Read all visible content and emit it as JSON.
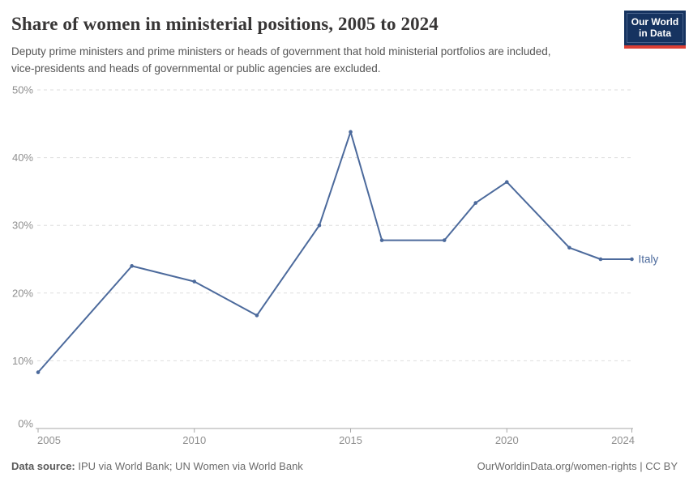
{
  "header": {
    "title": "Share of women in ministerial positions, 2005 to 2024",
    "subtitle": "Deputy prime ministers and prime ministers or heads of government that hold ministerial portfolios are included, vice-presidents and heads of governmental or public agencies are excluded."
  },
  "logo": {
    "line1": "Our World",
    "line2": "in Data"
  },
  "chart_data": {
    "type": "line",
    "title": "Share of women in ministerial positions, 2005 to 2024",
    "x": [
      2005,
      2008,
      2010,
      2012,
      2014,
      2015,
      2016,
      2018,
      2019,
      2020,
      2022,
      2023,
      2024
    ],
    "series": [
      {
        "name": "Italy",
        "color": "#4C6A9C",
        "values": [
          8.3,
          24,
          21.7,
          16.7,
          30,
          43.8,
          27.8,
          27.8,
          33.3,
          36.4,
          26.7,
          25,
          25
        ]
      }
    ],
    "xlim": [
      2005,
      2024
    ],
    "ylim": [
      0,
      50
    ],
    "x_ticks": [
      2005,
      2010,
      2015,
      2020,
      2024
    ],
    "y_ticks": [
      0,
      10,
      20,
      30,
      40,
      50
    ],
    "y_tick_suffix": "%",
    "grid": "horizontal-dashed",
    "legend_position": "end-of-line"
  },
  "footer": {
    "source_label": "Data source:",
    "source_text": " IPU via World Bank; UN Women via World Bank",
    "right_text": "OurWorldinData.org/women-rights | CC BY"
  },
  "colors": {
    "line": "#4C6A9C",
    "title": "#383636",
    "subtitle": "#555555",
    "axis_text": "#8f8f8f",
    "grid": "#dedede",
    "axis_line": "#a7a7a7",
    "logo_bg": "#163360",
    "logo_red": "#dc3f34",
    "footer_text": "#6b6b6b"
  }
}
